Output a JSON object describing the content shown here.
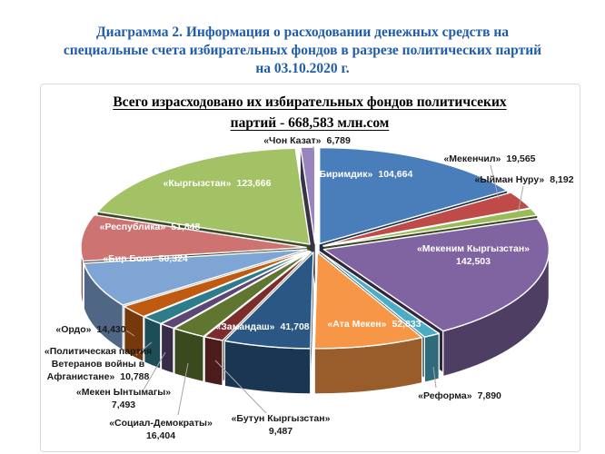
{
  "page": {
    "title_lines": [
      "Диаграмма 2. Информация о расходовании денежных средств на",
      "специальные счета избирательных фондов в разрезе политических партий",
      "на 03.10.2020 г."
    ],
    "title_color": "#1f5ca9"
  },
  "chart_data": {
    "type": "pie",
    "style": "3d-exploded-pie",
    "title": "Всего израсходовано их избирательных фондов политичсеких партий - 668,583 млн.сом",
    "title_line1": "Всего израсходовано их избирательных фондов политичсеких",
    "title_line2": "партий  -  668,583 млн.сом",
    "total_value_text": "668,583",
    "units": "млн.сом",
    "legend_position": "none",
    "slices": [
      {
        "label": "«Биримдик»",
        "value": 104664,
        "value_text": "104,664",
        "color": "#4A7EBB",
        "label_placement": "inside"
      },
      {
        "label": "«Мекенчил»",
        "value": 19565,
        "value_text": "19,565",
        "color": "#BE4B48",
        "label_placement": "outside"
      },
      {
        "label": "«Ыйман Нуру»",
        "value": 8192,
        "value_text": "8,192",
        "color": "#9BBB59",
        "label_placement": "outside"
      },
      {
        "label": "«Мекеним Кыргызстан»",
        "value": 142503,
        "value_text": "142,503",
        "color": "#8064A2",
        "label_placement": "inside"
      },
      {
        "label": "«Реформа»",
        "value": 7890,
        "value_text": "7,890",
        "color": "#4BACC6",
        "label_placement": "outside"
      },
      {
        "label": "«Ата Мекен»",
        "value": 52833,
        "value_text": "52,833",
        "color": "#F79646",
        "label_placement": "inside"
      },
      {
        "label": "«Замандаш»",
        "value": 41708,
        "value_text": "41,708",
        "color": "#2A5784",
        "label_placement": "inside"
      },
      {
        "label": "«Бутун Кыргызстан»",
        "value": 9487,
        "value_text": "9,487",
        "color": "#7B2C2B",
        "label_placement": "outside"
      },
      {
        "label": "«Социал-Демократы»",
        "value": 16404,
        "value_text": "16,404",
        "color": "#5F7530",
        "label_placement": "outside"
      },
      {
        "label": "«Мекен Ынтымагы»",
        "value": 7493,
        "value_text": "7,493",
        "color": "#5C4776",
        "label_placement": "outside"
      },
      {
        "label": "«Политическая партия Ветеранов войны в Афганистане»",
        "value": 10788,
        "value_text": "10,788",
        "color": "#2E7C8A",
        "label_placement": "outside"
      },
      {
        "label": "«Ордо»",
        "value": 14430,
        "value_text": "14,430",
        "color": "#C05A11",
        "label_placement": "outside"
      },
      {
        "label": "«Бир Бол»",
        "value": 50324,
        "value_text": "50,324",
        "color": "#7FA5D5",
        "label_placement": "inside"
      },
      {
        "label": "«Республика»",
        "value": 51848,
        "value_text": "51,848",
        "color": "#CD7371",
        "label_placement": "inside"
      },
      {
        "label": "«Кыргызстан»",
        "value": 123666,
        "value_text": "123,666",
        "color": "#A3C266",
        "label_placement": "inside"
      },
      {
        "label": "«Чон Казат»",
        "value": 6789,
        "value_text": "6,789",
        "color": "#9885BE",
        "label_placement": "outside"
      }
    ]
  }
}
